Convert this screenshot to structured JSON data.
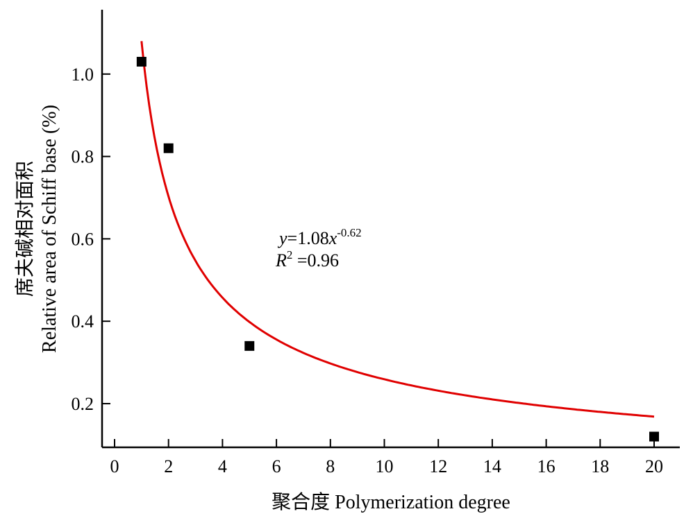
{
  "chart_data": {
    "type": "scatter",
    "xlabel": "聚合度 Polymerization degree",
    "ylabel_line1": "席夫碱相对面积",
    "ylabel_line2": "Relative area of Schiff base (%)",
    "xlim": [
      -0.5,
      21
    ],
    "ylim": [
      0.09,
      1.16
    ],
    "xticks": [
      0,
      2,
      4,
      6,
      8,
      10,
      12,
      14,
      16,
      18,
      20
    ],
    "yticks": [
      0.2,
      0.4,
      0.6,
      0.8,
      1.0
    ],
    "ytick_labels": [
      "0.2",
      "0.4",
      "0.6",
      "0.8",
      "1.0"
    ],
    "series": [
      {
        "x": [
          1,
          2,
          5,
          20
        ],
        "y": [
          1.03,
          0.82,
          0.34,
          0.12
        ],
        "marker": "square",
        "color": "#000000"
      }
    ],
    "fit": {
      "model": "power",
      "a": 1.08,
      "b": -0.62,
      "x_range": [
        1,
        20
      ],
      "color": "#e00000"
    },
    "annotation": {
      "equation_y": "y",
      "equation_mid": "=1.08",
      "equation_x": "x",
      "equation_exp": "-0.62",
      "r2_R": "R",
      "r2_sup": "2",
      "r2_rest": " =0.96"
    },
    "grid": false
  }
}
